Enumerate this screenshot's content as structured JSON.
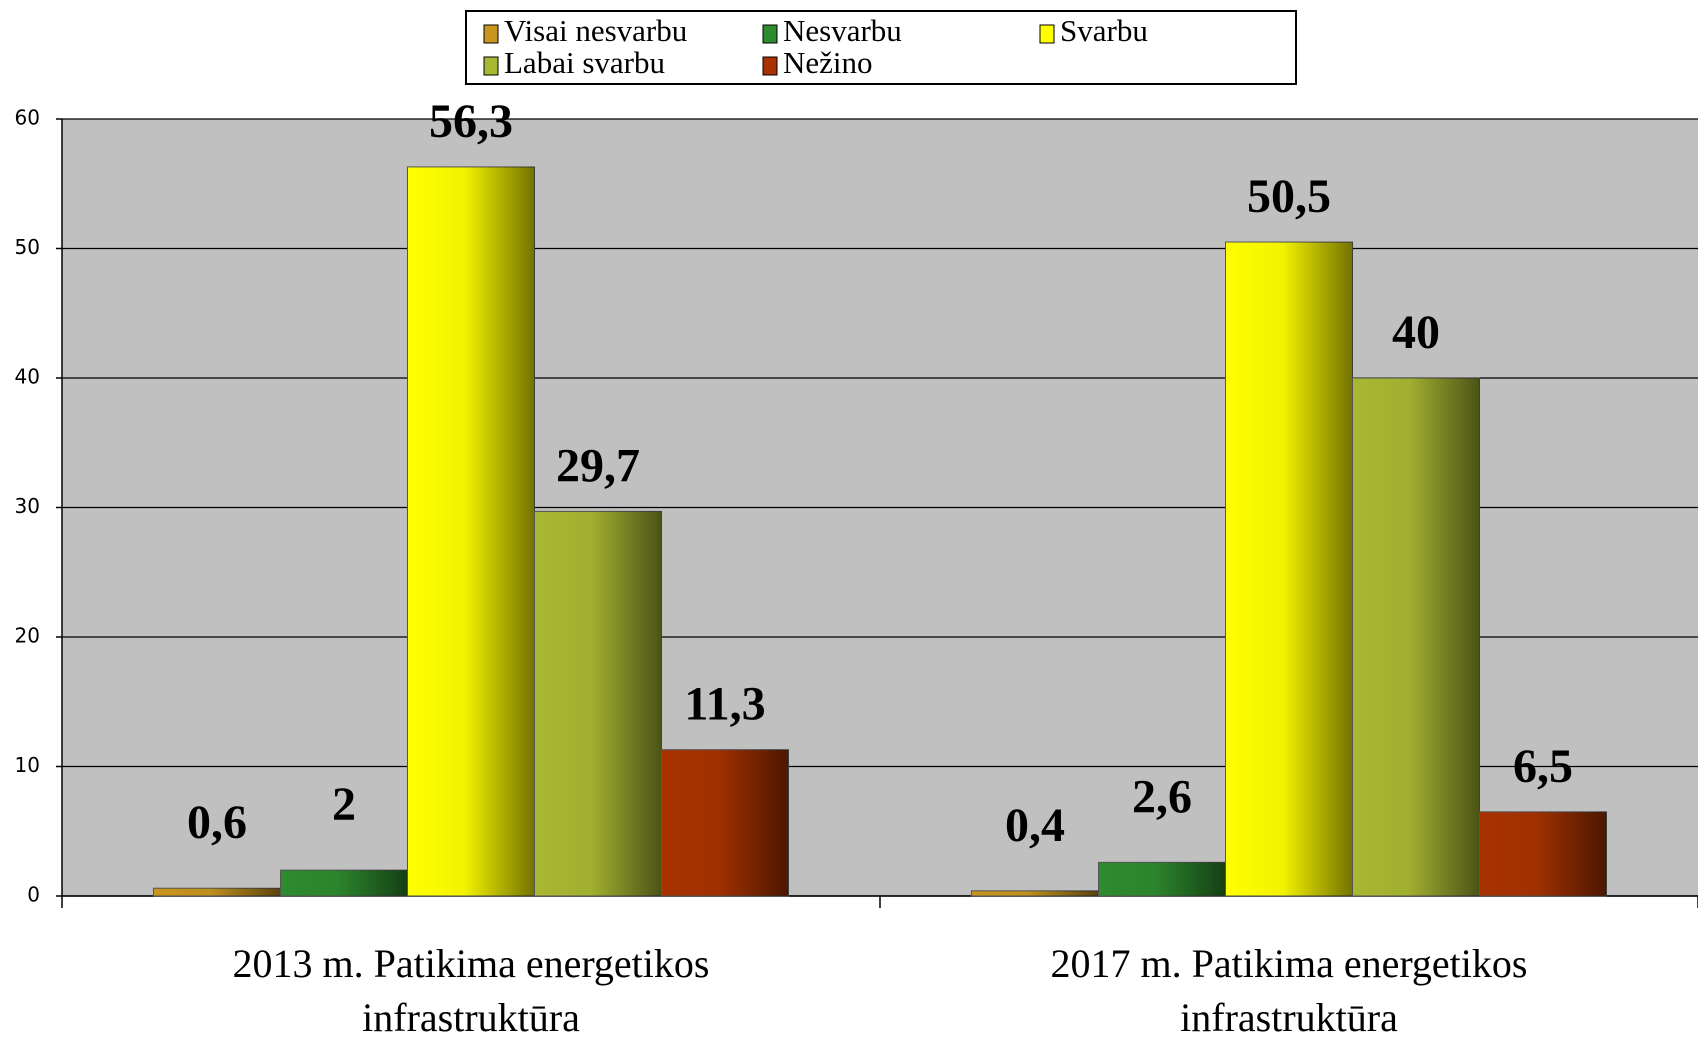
{
  "chart_data": {
    "type": "bar",
    "categories": [
      "2013 m. Patikima energetikos infrastruktūra",
      "2017 m. Patikima energetikos infrastruktūra"
    ],
    "series": [
      {
        "name": "Visai nesvarbu",
        "color": "#c8961e",
        "values": [
          0.6,
          0.4
        ],
        "value_labels": [
          "0,6",
          "0,4"
        ]
      },
      {
        "name": "Nesvarbu",
        "color": "#2e8b2e",
        "values": [
          2,
          2.6
        ],
        "value_labels": [
          "2",
          "2,6"
        ]
      },
      {
        "name": "Svarbu",
        "color": "#ffff00",
        "values": [
          56.3,
          50.5
        ],
        "value_labels": [
          "56,3",
          "50,5"
        ]
      },
      {
        "name": "Labai svarbu",
        "color": "#a8b832",
        "values": [
          29.7,
          40
        ],
        "value_labels": [
          "29,7",
          "40"
        ]
      },
      {
        "name": "Nežino",
        "color": "#a83200",
        "values": [
          11.3,
          6.5
        ],
        "value_labels": [
          "11,3",
          "6,5"
        ]
      }
    ],
    "ylim": [
      0,
      60
    ],
    "yticks": [
      0,
      10,
      20,
      30,
      40,
      50,
      60
    ],
    "grid": true,
    "legend": "top"
  }
}
